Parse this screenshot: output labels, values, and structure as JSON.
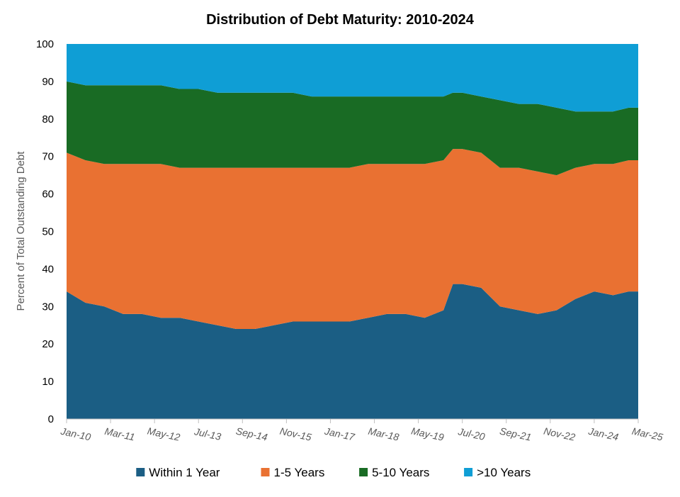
{
  "chart_data": {
    "type": "area",
    "stacked": true,
    "title": "Distribution of Debt Maturity: 2010-2024",
    "ylabel": "Percent of Total Outstanding Debt",
    "xlabel": "",
    "ylim": [
      0,
      100
    ],
    "yticks": [
      0,
      10,
      20,
      30,
      40,
      50,
      60,
      70,
      80,
      90,
      100
    ],
    "x_range_months": [
      "Jan-10",
      "Mar-25"
    ],
    "x_ticks": [
      "Jan-10",
      "Mar-11",
      "May-12",
      "Jul-13",
      "Sep-14",
      "Nov-15",
      "Jan-17",
      "Mar-18",
      "May-19",
      "Jul-20",
      "Sep-21",
      "Nov-22",
      "Jan-24",
      "Mar-25"
    ],
    "legend_position": "bottom",
    "grid": false,
    "x": [
      "Jan-10",
      "Jul-10",
      "Jan-11",
      "Jul-11",
      "Jan-12",
      "Jul-12",
      "Jan-13",
      "Jul-13",
      "Jan-14",
      "Jul-14",
      "Jan-15",
      "Jul-15",
      "Jan-16",
      "Jul-16",
      "Jan-17",
      "Jul-17",
      "Jan-18",
      "Jul-18",
      "Jan-19",
      "Jul-19",
      "Jan-20",
      "Apr-20",
      "Jul-20",
      "Jan-21",
      "Jul-21",
      "Jan-22",
      "Jul-22",
      "Jan-23",
      "Jul-23",
      "Jan-24",
      "Jul-24",
      "Dec-24"
    ],
    "series": [
      {
        "name": "Within 1 Year",
        "color": "#1b5e84",
        "values": [
          34,
          31,
          30,
          28,
          28,
          27,
          27,
          26,
          25,
          24,
          24,
          25,
          26,
          26,
          26,
          26,
          27,
          28,
          28,
          27,
          29,
          36,
          36,
          35,
          30,
          29,
          28,
          29,
          32,
          34,
          33,
          34
        ]
      },
      {
        "name": "1-5 Years",
        "color": "#e97132",
        "values": [
          37,
          38,
          38,
          40,
          40,
          41,
          40,
          41,
          42,
          43,
          43,
          42,
          41,
          41,
          41,
          41,
          41,
          40,
          40,
          41,
          40,
          36,
          36,
          36,
          37,
          38,
          38,
          36,
          35,
          34,
          35,
          35
        ]
      },
      {
        "name": "5-10 Years",
        "color": "#196b24",
        "values": [
          19,
          20,
          21,
          21,
          21,
          21,
          21,
          21,
          20,
          20,
          20,
          20,
          20,
          19,
          19,
          19,
          18,
          18,
          18,
          18,
          17,
          15,
          15,
          15,
          18,
          17,
          18,
          18,
          15,
          14,
          14,
          14
        ]
      },
      {
        "name": ">10 Years",
        "color": "#0f9ed5",
        "values": [
          10,
          11,
          11,
          11,
          11,
          11,
          12,
          12,
          13,
          13,
          13,
          13,
          13,
          14,
          14,
          14,
          14,
          14,
          14,
          14,
          14,
          13,
          13,
          14,
          15,
          16,
          16,
          17,
          18,
          18,
          18,
          17
        ]
      }
    ]
  }
}
